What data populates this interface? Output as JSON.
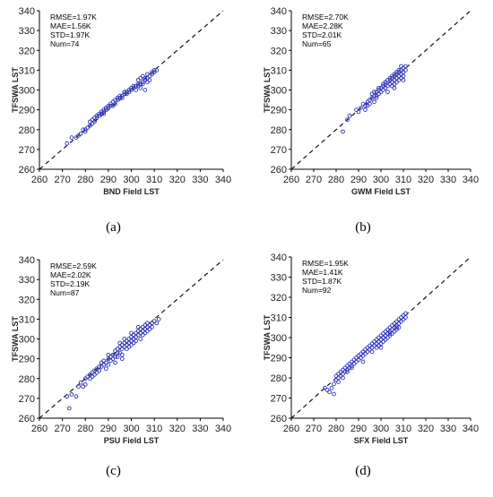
{
  "chart_data": [
    {
      "type": "scatter",
      "panel_label": "(a)",
      "xlabel": "BND Field LST",
      "ylabel": "TFSWA LST",
      "xlim": [
        260,
        340
      ],
      "ylim": [
        260,
        340
      ],
      "ticks": [
        260,
        270,
        280,
        290,
        300,
        310,
        320,
        330,
        340
      ],
      "reference_line": "1:1 dashed",
      "stats": [
        "RMSE=1.97K",
        "MAE=1.56K",
        "STD=1.97K",
        "Num=74"
      ],
      "marker_color": "#2b2fb8",
      "x": [
        272,
        274,
        276,
        277,
        278,
        279,
        280,
        280,
        281,
        282,
        282,
        283,
        283,
        284,
        284,
        285,
        285,
        286,
        286,
        287,
        287,
        288,
        288,
        288,
        289,
        289,
        290,
        290,
        291,
        291,
        292,
        292,
        293,
        293,
        294,
        294,
        295,
        295,
        296,
        296,
        297,
        297,
        298,
        298,
        299,
        299,
        300,
        300,
        301,
        301,
        302,
        302,
        303,
        303,
        303,
        304,
        304,
        304,
        305,
        305,
        305,
        306,
        306,
        306,
        307,
        307,
        307,
        308,
        308,
        309,
        309,
        310,
        310,
        311
      ],
      "y": [
        273,
        276,
        276,
        277,
        278,
        280,
        279,
        280,
        281,
        282,
        284,
        283,
        285,
        284,
        286,
        286,
        287,
        287,
        288,
        288,
        289,
        289,
        288,
        290,
        290,
        291,
        291,
        292,
        292,
        293,
        292,
        294,
        293,
        295,
        295,
        296,
        296,
        297,
        297,
        296,
        298,
        299,
        299,
        298,
        300,
        299,
        301,
        300,
        302,
        301,
        302,
        300,
        303,
        305,
        302,
        306,
        303,
        301,
        304,
        307,
        303,
        305,
        306,
        300,
        306,
        308,
        304,
        307,
        305,
        309,
        308,
        310,
        309,
        310
      ]
    },
    {
      "type": "scatter",
      "panel_label": "(b)",
      "xlabel": "GWM Field LST",
      "ylabel": "TFSWA LST",
      "xlim": [
        260,
        340
      ],
      "ylim": [
        260,
        340
      ],
      "ticks": [
        260,
        270,
        280,
        290,
        300,
        310,
        320,
        330,
        340
      ],
      "reference_line": "1:1 dashed",
      "stats": [
        "RMSE=2.70K",
        "MAE=2.28K",
        "STD=2.01K",
        "Num=65"
      ],
      "marker_color": "#2b2fb8",
      "x": [
        283,
        285,
        286,
        289,
        290,
        291,
        292,
        293,
        293,
        294,
        294,
        295,
        295,
        296,
        296,
        297,
        297,
        297,
        298,
        298,
        298,
        299,
        299,
        299,
        300,
        300,
        301,
        301,
        301,
        302,
        302,
        302,
        303,
        303,
        304,
        304,
        304,
        305,
        305,
        305,
        305,
        306,
        306,
        306,
        306,
        307,
        307,
        307,
        307,
        308,
        308,
        308,
        308,
        309,
        309,
        309,
        309,
        310,
        310,
        310,
        310,
        311,
        311,
        306,
        303
      ],
      "y": [
        279,
        285,
        287,
        290,
        289,
        291,
        293,
        290,
        292,
        294,
        292,
        295,
        293,
        296,
        298,
        294,
        297,
        299,
        296,
        299,
        297,
        300,
        298,
        301,
        301,
        299,
        300,
        302,
        303,
        301,
        303,
        304,
        302,
        305,
        303,
        305,
        306,
        304,
        306,
        307,
        302,
        305,
        307,
        308,
        303,
        306,
        308,
        309,
        304,
        307,
        309,
        310,
        305,
        308,
        310,
        312,
        306,
        309,
        311,
        305,
        307,
        310,
        312,
        301,
        299
      ]
    },
    {
      "type": "scatter",
      "panel_label": "(c)",
      "xlabel": "PSU Field LST",
      "ylabel": "TFSWA LST",
      "xlim": [
        260,
        340
      ],
      "ylim": [
        260,
        340
      ],
      "ticks": [
        260,
        270,
        280,
        290,
        300,
        310,
        320,
        330,
        340
      ],
      "reference_line": "1:1 dashed",
      "stats": [
        "RMSE=2.59K",
        "MAE=2.02K",
        "STD=2.19K",
        "Num=87"
      ],
      "marker_color": "#2b2fb8",
      "x": [
        272,
        273,
        274,
        276,
        277,
        278,
        279,
        280,
        280,
        281,
        282,
        282,
        283,
        283,
        284,
        284,
        285,
        285,
        286,
        286,
        287,
        287,
        288,
        288,
        289,
        289,
        290,
        290,
        290,
        291,
        291,
        292,
        292,
        293,
        293,
        294,
        294,
        294,
        295,
        295,
        295,
        296,
        296,
        296,
        297,
        297,
        297,
        298,
        298,
        298,
        299,
        299,
        299,
        300,
        300,
        300,
        301,
        301,
        301,
        302,
        302,
        302,
        303,
        303,
        303,
        304,
        304,
        304,
        305,
        305,
        305,
        306,
        306,
        306,
        307,
        307,
        307,
        308,
        308,
        309,
        309,
        310,
        311,
        312,
        300,
        296,
        293
      ],
      "y": [
        271,
        265,
        272,
        271,
        276,
        278,
        276,
        280,
        277,
        281,
        282,
        280,
        283,
        281,
        284,
        282,
        285,
        283,
        286,
        284,
        286,
        288,
        287,
        289,
        288,
        285,
        290,
        287,
        292,
        291,
        289,
        292,
        290,
        294,
        291,
        293,
        295,
        291,
        296,
        293,
        298,
        295,
        297,
        292,
        296,
        298,
        300,
        297,
        299,
        295,
        298,
        300,
        296,
        299,
        301,
        297,
        300,
        302,
        298,
        301,
        303,
        299,
        302,
        304,
        306,
        303,
        305,
        300,
        304,
        306,
        302,
        305,
        307,
        303,
        306,
        308,
        304,
        307,
        305,
        308,
        306,
        309,
        308,
        310,
        303,
        290,
        288
      ]
    },
    {
      "type": "scatter",
      "panel_label": "(d)",
      "xlabel": "SFX Field LST",
      "ylabel": "TFSWA LST",
      "xlim": [
        260,
        340
      ],
      "ylim": [
        260,
        340
      ],
      "ticks": [
        260,
        270,
        280,
        290,
        300,
        310,
        320,
        330,
        340
      ],
      "reference_line": "1:1 dashed",
      "stats": [
        "RMSE=1.95K",
        "MAE=1.41K",
        "STD=1.87K",
        "Num=92"
      ],
      "marker_color": "#2b2fb8",
      "x": [
        275,
        276,
        277,
        278,
        279,
        280,
        280,
        281,
        281,
        282,
        282,
        283,
        283,
        284,
        284,
        285,
        285,
        286,
        286,
        287,
        287,
        288,
        288,
        289,
        289,
        290,
        290,
        291,
        291,
        292,
        292,
        293,
        293,
        294,
        294,
        295,
        295,
        296,
        296,
        297,
        297,
        298,
        298,
        298,
        299,
        299,
        299,
        300,
        300,
        300,
        301,
        301,
        301,
        302,
        302,
        302,
        303,
        303,
        303,
        304,
        304,
        304,
        305,
        305,
        305,
        306,
        306,
        306,
        307,
        307,
        307,
        308,
        308,
        308,
        309,
        309,
        310,
        310,
        311,
        311,
        279,
        281,
        283,
        285,
        287,
        296,
        299,
        302,
        304,
        307,
        292,
        300
      ],
      "y": [
        275,
        274,
        273,
        275,
        277,
        279,
        281,
        280,
        282,
        281,
        283,
        282,
        284,
        283,
        285,
        284,
        286,
        285,
        287,
        286,
        288,
        287,
        289,
        288,
        290,
        289,
        291,
        290,
        292,
        291,
        293,
        292,
        294,
        293,
        295,
        294,
        296,
        295,
        297,
        296,
        298,
        297,
        299,
        295,
        298,
        300,
        296,
        299,
        301,
        297,
        300,
        302,
        298,
        301,
        303,
        299,
        302,
        304,
        300,
        303,
        305,
        301,
        304,
        306,
        302,
        305,
        307,
        303,
        306,
        308,
        304,
        307,
        309,
        305,
        308,
        310,
        309,
        311,
        310,
        312,
        272,
        278,
        280,
        283,
        285,
        293,
        296,
        299,
        302,
        305,
        288,
        295
      ]
    }
  ]
}
